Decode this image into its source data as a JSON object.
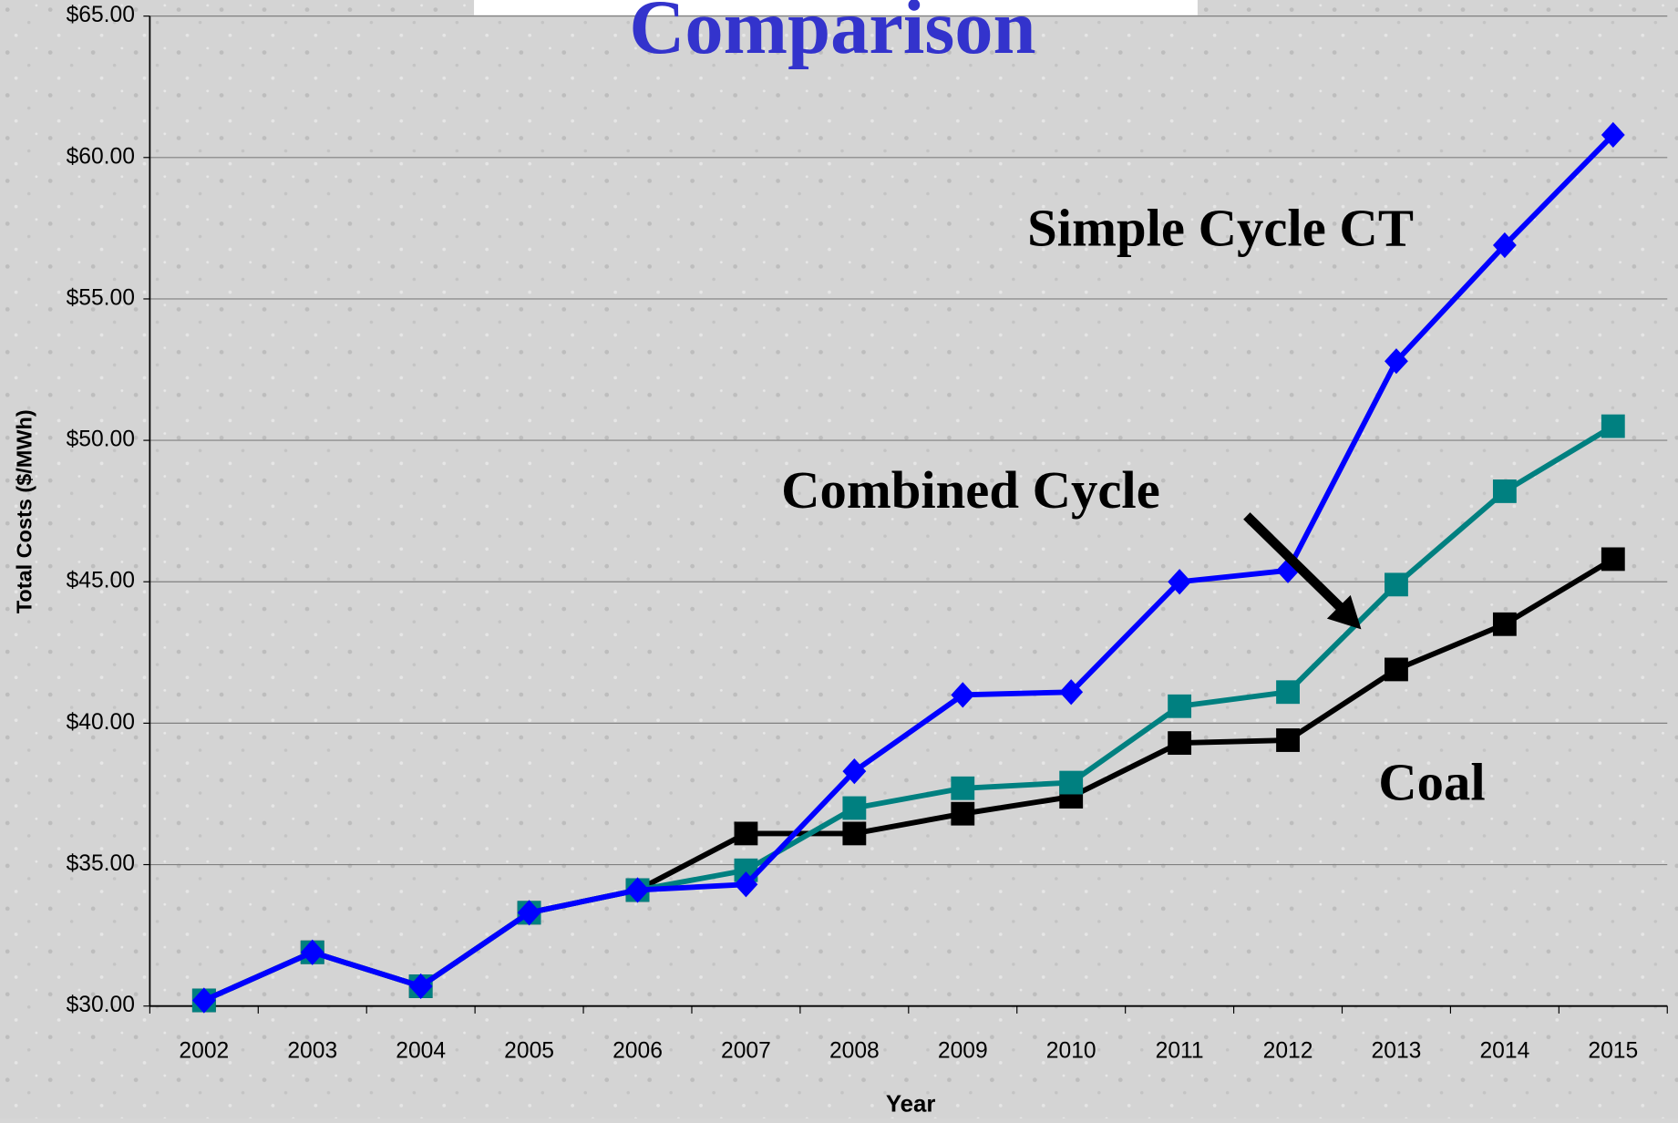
{
  "chart_data": {
    "type": "line",
    "title": "Comparison",
    "x_label": "Year",
    "y_label": "Total Costs ($/MWh)",
    "categories": [
      "2002",
      "2003",
      "2004",
      "2005",
      "2006",
      "2007",
      "2008",
      "2009",
      "2010",
      "2011",
      "2012",
      "2013",
      "2014",
      "2015"
    ],
    "series": [
      {
        "name": "Coal",
        "color": "#000000",
        "marker": "square",
        "values": [
          30.2,
          31.9,
          30.7,
          33.3,
          34.1,
          36.1,
          36.1,
          36.8,
          37.4,
          39.3,
          39.4,
          41.9,
          43.5,
          45.8
        ]
      },
      {
        "name": "Combined Cycle",
        "color": "#008080",
        "marker": "square",
        "values": [
          30.2,
          31.9,
          30.7,
          33.3,
          34.1,
          34.8,
          37.0,
          37.7,
          37.9,
          40.6,
          41.1,
          44.9,
          48.2,
          50.5
        ]
      },
      {
        "name": "Simple Cycle CT",
        "color": "#0000ff",
        "marker": "diamond",
        "values": [
          30.2,
          31.9,
          30.7,
          33.3,
          34.1,
          34.3,
          38.3,
          41.0,
          41.1,
          45.0,
          45.4,
          52.8,
          56.9,
          60.8
        ]
      }
    ],
    "ylim": [
      30,
      65
    ],
    "yticks": [
      {
        "value": 30,
        "label": "$30.00"
      },
      {
        "value": 35,
        "label": "$35.00"
      },
      {
        "value": 40,
        "label": "$40.00"
      },
      {
        "value": 45,
        "label": "$45.00"
      },
      {
        "value": 50,
        "label": "$50.00"
      },
      {
        "value": 55,
        "label": "$55.00"
      },
      {
        "value": 60,
        "label": "$60.00"
      },
      {
        "value": 65,
        "label": "$65.00"
      }
    ],
    "grid": true
  }
}
